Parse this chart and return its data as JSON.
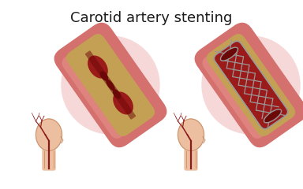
{
  "title": "Carotid artery stenting",
  "title_fontsize": 13,
  "background_color": "#ffffff",
  "skin_color": "#ebbf9f",
  "skin_outline_color": "#c8906a",
  "artery_outer_color": "#d4706e",
  "artery_highlight_color": "#e8908a",
  "plaque_color": "#c4a055",
  "blood_color": "#9b1a1a",
  "blood_dark_color": "#6b0808",
  "stent_color": "#999999",
  "stent_dark": "#666666",
  "circle_color": "#f7d8d8",
  "vein_color": "#8b1a1a",
  "vein_outline": "#c87070"
}
